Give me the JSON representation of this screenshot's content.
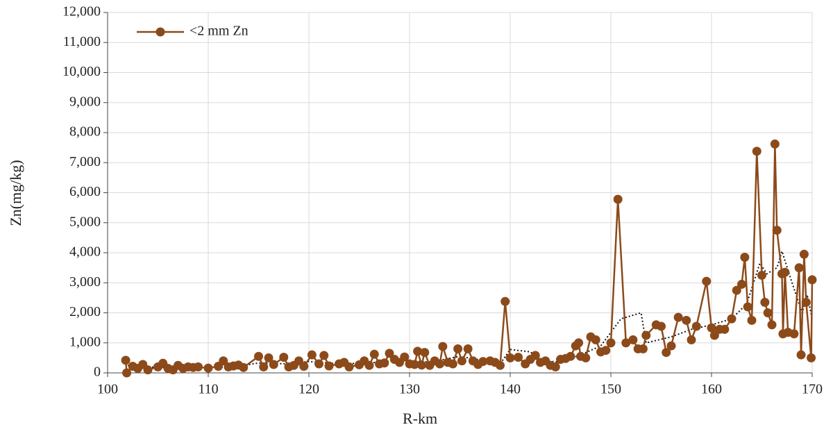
{
  "chart_data": {
    "type": "line",
    "xlabel": "R-km",
    "ylabel": "Zn(mg/kg)",
    "xlim": [
      100,
      170
    ],
    "xticks": [
      100,
      110,
      120,
      130,
      140,
      150,
      160,
      170
    ],
    "ylim": [
      0,
      12000
    ],
    "yticks": [
      0,
      {
        "value": 1000,
        "label": "1,000"
      },
      {
        "value": 2000,
        "label": "2,000"
      },
      {
        "value": 3000,
        "label": "3,000"
      },
      {
        "value": 4000,
        "label": "4,000"
      },
      {
        "value": 5000,
        "label": "5,000"
      },
      {
        "value": 6000,
        "label": "6,000"
      },
      {
        "value": 7000,
        "label": "7,000"
      },
      {
        "value": 8000,
        "label": "8,000"
      },
      {
        "value": 9000,
        "label": "9,000"
      },
      {
        "value": 10000,
        "label": "10,000"
      },
      {
        "value": 11000,
        "label": "11,000"
      },
      {
        "value": 12000,
        "label": "12,000"
      }
    ],
    "grid": true,
    "legend": "upper left",
    "x": [
      101.8,
      101.9,
      102.5,
      103,
      103.5,
      104,
      105,
      105.5,
      106,
      106.5,
      107,
      107.5,
      108,
      108.5,
      109,
      110,
      111,
      111.5,
      112,
      112.5,
      113,
      113.5,
      115,
      115.5,
      116,
      116.5,
      117.5,
      118,
      118.5,
      119,
      119.5,
      120.3,
      121,
      121.5,
      122,
      123,
      123.5,
      124,
      125,
      125.5,
      126,
      126.5,
      127,
      127.5,
      128,
      128.5,
      129,
      129.5,
      130,
      130.5,
      130.8,
      131.2,
      131.5,
      132,
      132.5,
      133,
      133.3,
      133.8,
      134.3,
      134.8,
      135.2,
      135.8,
      136.3,
      136.8,
      137.3,
      138,
      138.5,
      139,
      139.5,
      140,
      140.8,
      141.5,
      142,
      142.5,
      143,
      143.5,
      144,
      144.5,
      145,
      145.5,
      146,
      146.5,
      146.8,
      147,
      147.5,
      148,
      148.5,
      149,
      149.5,
      150,
      150.7,
      151.5,
      152.2,
      152.7,
      153.2,
      153.5,
      154.5,
      155,
      155.5,
      156,
      156.7,
      157.5,
      158,
      158.5,
      159.5,
      160,
      160.3,
      160.8,
      161.3,
      162,
      162.5,
      163,
      163.3,
      163.6,
      164,
      164.5,
      165,
      165.3,
      165.6,
      166,
      166.3,
      166.5,
      167,
      167.1,
      167.3,
      167.6,
      168.2,
      168.7,
      168.9,
      169.2,
      169.4,
      169.9,
      170
    ],
    "series": [
      {
        "name": "<2 mm Zn",
        "color": "#8c4a1a",
        "values": [
          420,
          0,
          220,
          150,
          280,
          100,
          200,
          320,
          150,
          100,
          250,
          150,
          200,
          180,
          200,
          160,
          220,
          400,
          200,
          230,
          260,
          180,
          550,
          200,
          500,
          280,
          520,
          200,
          250,
          400,
          220,
          600,
          300,
          580,
          230,
          300,
          350,
          200,
          270,
          400,
          250,
          620,
          300,
          330,
          650,
          450,
          350,
          530,
          300,
          280,
          720,
          260,
          680,
          250,
          400,
          300,
          880,
          350,
          300,
          800,
          400,
          800,
          400,
          280,
          380,
          400,
          350,
          250,
          2380,
          500,
          520,
          300,
          450,
          580,
          350,
          400,
          250,
          200,
          450,
          480,
          550,
          900,
          1000,
          550,
          500,
          1200,
          1100,
          700,
          750,
          1000,
          5780,
          1000,
          1100,
          800,
          800,
          1250,
          1600,
          1550,
          680,
          900,
          1850,
          1750,
          1100,
          1550,
          3050,
          1500,
          1250,
          1450,
          1450,
          1800,
          2750,
          2950,
          3850,
          2200,
          1750,
          7380,
          3250,
          2350,
          2000,
          1600,
          7620,
          4750,
          3300,
          1300,
          3350,
          1350,
          1300,
          3500,
          600,
          3950,
          2350,
          500,
          3100
        ]
      },
      {
        "color": "#111111",
        "dash": "dotted",
        "x": [
          102,
          105,
          108,
          110,
          113,
          115,
          118,
          120,
          123,
          126,
          129,
          132,
          135,
          137,
          139,
          140,
          142,
          143,
          145,
          147,
          149,
          151,
          153,
          153.5,
          156,
          158,
          160,
          162,
          163.5,
          164.8,
          165.5,
          166.5,
          167,
          168,
          169,
          169.5,
          170
        ],
        "values": [
          250,
          180,
          170,
          160,
          220,
          330,
          300,
          380,
          300,
          330,
          420,
          360,
          550,
          430,
          300,
          780,
          700,
          420,
          350,
          600,
          900,
          1800,
          2000,
          1000,
          1200,
          1450,
          1600,
          1800,
          2300,
          3650,
          3300,
          3500,
          4050,
          3000,
          2000,
          2600,
          1800
        ]
      }
    ]
  }
}
